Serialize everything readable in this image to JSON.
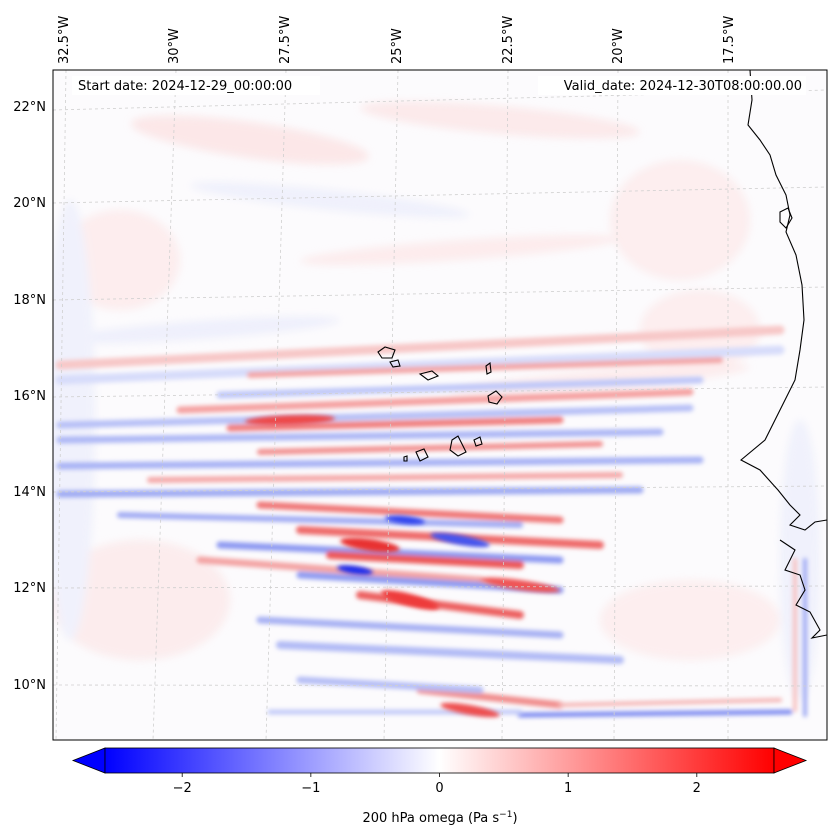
{
  "map": {
    "start_label": "Start date: 2024-12-29_00:00:00",
    "valid_label": "Valid_date: 2024-12-30T08:00:00.00",
    "lon_labels": [
      "32.5°W",
      "30°W",
      "27.5°W",
      "25°W",
      "22.5°W",
      "20°W",
      "17.5°W"
    ],
    "lat_labels": [
      "22°N",
      "20°N",
      "18°N",
      "16°N",
      "14°N",
      "12°N",
      "10°N"
    ],
    "colors": {
      "negative": "#0000ff",
      "neutral": "#ffffff",
      "positive": "#ff0000",
      "coast": "#000000"
    }
  },
  "colorbar": {
    "ticks": [
      "−2",
      "−1",
      "0",
      "1",
      "2"
    ],
    "tick_values": [
      -2,
      -1,
      0,
      1,
      2
    ],
    "range": [
      -2.6,
      2.6
    ],
    "label": "200 hPa omega (Pa s",
    "label_sup": "−1",
    "label_close": ")"
  }
}
